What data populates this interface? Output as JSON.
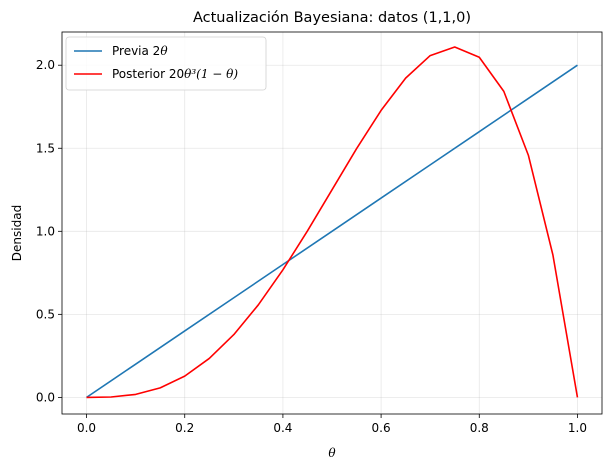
{
  "chart_data": {
    "type": "line",
    "title": "Actualización Bayesiana: datos (1,1,0)",
    "xlabel": "θ",
    "ylabel": "Densidad",
    "xlim": [
      -0.05,
      1.05
    ],
    "ylim": [
      -0.1,
      2.2
    ],
    "x_ticks": [
      0.0,
      0.2,
      0.4,
      0.6,
      0.8,
      1.0
    ],
    "x_tick_labels": [
      "0.0",
      "0.2",
      "0.4",
      "0.6",
      "0.8",
      "1.0"
    ],
    "y_ticks": [
      0.0,
      0.5,
      1.0,
      1.5,
      2.0
    ],
    "y_tick_labels": [
      "0.0",
      "0.5",
      "1.0",
      "1.5",
      "2.0"
    ],
    "grid": true,
    "legend_position": "top-left",
    "series": [
      {
        "name": "Previa 2θ",
        "name_prefix": "Previa 2",
        "name_math": "θ",
        "color": "#1f77b4",
        "x": [
          0.0,
          0.1,
          0.2,
          0.3,
          0.4,
          0.5,
          0.6,
          0.7,
          0.8,
          0.9,
          1.0
        ],
        "values": [
          0.0,
          0.2,
          0.4,
          0.6,
          0.8,
          1.0,
          1.2,
          1.4,
          1.6,
          1.8,
          2.0
        ]
      },
      {
        "name": "Posterior 20θ³(1 − θ)",
        "name_prefix": "Posterior 20",
        "name_math": "θ³(1 − θ)",
        "color": "#ff0000",
        "x": [
          0.0,
          0.05,
          0.1,
          0.15,
          0.2,
          0.25,
          0.3,
          0.35,
          0.4,
          0.45,
          0.5,
          0.55,
          0.6,
          0.65,
          0.7,
          0.75,
          0.8,
          0.85,
          0.9,
          0.95,
          1.0
        ],
        "values": [
          0.0,
          0.0024,
          0.018,
          0.0574,
          0.128,
          0.2344,
          0.378,
          0.5574,
          0.768,
          1.0024,
          1.25,
          1.4974,
          1.728,
          1.9224,
          2.058,
          2.1094,
          2.048,
          1.8424,
          1.458,
          0.8574,
          0.0
        ]
      }
    ]
  }
}
